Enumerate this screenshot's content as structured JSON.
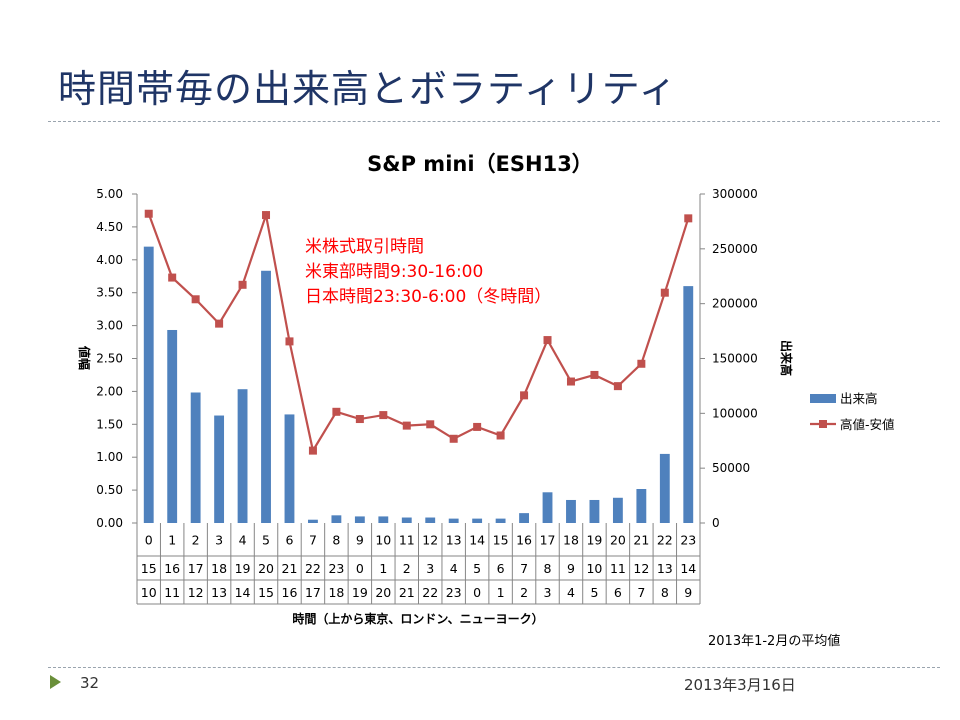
{
  "slide": {
    "title": "時間帯毎の出来高とボラティリティ",
    "page_number": "32",
    "date": "2013年3月16日",
    "note": "2013年1-2月の平均値"
  },
  "colors": {
    "title": "#1f3566",
    "bars": "#4f81bd",
    "line": "#c0504d",
    "annotation": "#ff0000",
    "marker": "#6a8f3a"
  },
  "chart_data": {
    "type": "bar",
    "title": "S&P mini（ESH13）",
    "annotation": [
      "米株式取引時間",
      "米東部時間9:30-16:00",
      "日本時間23:30-6:00（冬時間）"
    ],
    "xlabel": "時間（上から東京、ロンドン、ニューヨーク）",
    "ylabel_left": "値幅",
    "ylabel_right": "出来高",
    "ylim_left": [
      0,
      5
    ],
    "ylim_right": [
      0,
      300000
    ],
    "left_ticks": [
      "5.00",
      "4.50",
      "4.00",
      "3.50",
      "3.00",
      "2.50",
      "2.00",
      "1.50",
      "1.00",
      "0.50",
      "0.00"
    ],
    "right_ticks": [
      "300000",
      "250000",
      "200000",
      "150000",
      "100000",
      "50000",
      "0"
    ],
    "categories_tokyo": [
      "0",
      "1",
      "2",
      "3",
      "4",
      "5",
      "6",
      "7",
      "8",
      "9",
      "10",
      "11",
      "12",
      "13",
      "14",
      "15",
      "16",
      "17",
      "18",
      "19",
      "20",
      "21",
      "22",
      "23"
    ],
    "categories_london": [
      "15",
      "16",
      "17",
      "18",
      "19",
      "20",
      "21",
      "22",
      "23",
      "0",
      "1",
      "2",
      "3",
      "4",
      "5",
      "6",
      "7",
      "8",
      "9",
      "10",
      "11",
      "12",
      "13",
      "14"
    ],
    "categories_newyork": [
      "10",
      "11",
      "12",
      "13",
      "14",
      "15",
      "16",
      "17",
      "18",
      "19",
      "20",
      "21",
      "22",
      "23",
      "0",
      "1",
      "2",
      "3",
      "4",
      "5",
      "6",
      "7",
      "8",
      "9"
    ],
    "series": [
      {
        "name": "出来高",
        "type": "bar",
        "axis": "right",
        "values": [
          252000,
          176000,
          119000,
          98000,
          122000,
          230000,
          99000,
          3000,
          7000,
          6000,
          6000,
          5000,
          5000,
          4000,
          4000,
          4000,
          9000,
          28000,
          21000,
          21000,
          23000,
          31000,
          63000,
          216000
        ]
      },
      {
        "name": "高値-安値",
        "type": "line",
        "axis": "left",
        "values": [
          4.7,
          3.73,
          3.4,
          3.03,
          3.62,
          4.68,
          2.76,
          1.1,
          1.69,
          1.58,
          1.64,
          1.48,
          1.5,
          1.28,
          1.46,
          1.33,
          1.94,
          2.78,
          2.15,
          2.25,
          2.08,
          2.42,
          3.5,
          4.63
        ]
      }
    ],
    "legend_position": "right",
    "grid": false
  }
}
